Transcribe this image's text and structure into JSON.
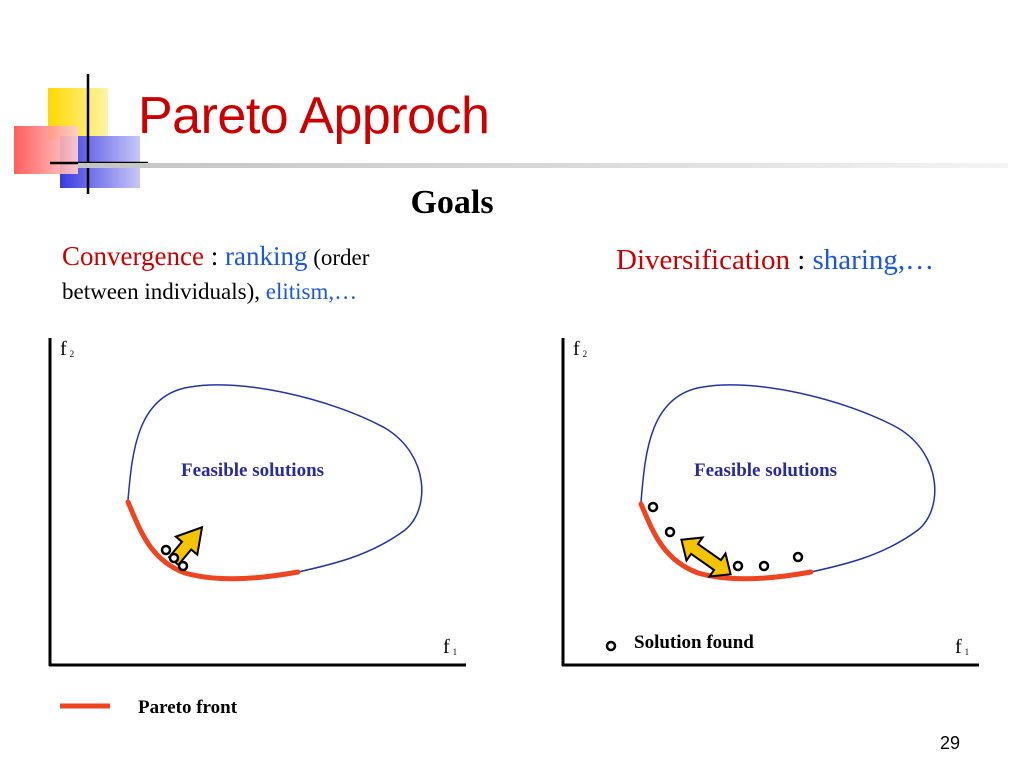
{
  "slide": {
    "title": "Pareto Approch",
    "subheading": "Goals",
    "page_number": "29"
  },
  "goals": {
    "convergence": {
      "label": "Convergence",
      "separator": " : ",
      "method": "ranking",
      "method_note": " (order",
      "line2_text": "between individuals), ",
      "line2_method": "elitism,…"
    },
    "diversification": {
      "label": "Diversification",
      "separator": " : ",
      "method": "sharing,…"
    }
  },
  "diagrams": {
    "left": {
      "region_label": "Feasible solutions",
      "y_axis_label": "f",
      "y_axis_sub": "2",
      "x_axis_label": "f",
      "x_axis_sub": "1"
    },
    "right": {
      "region_label": "Feasible solutions",
      "y_axis_label": "f",
      "y_axis_sub": "2",
      "x_axis_label": "f",
      "x_axis_sub": "1"
    }
  },
  "legend": {
    "pareto_front": "Pareto front",
    "solution_found": "Solution found"
  },
  "colors": {
    "title": "#cc0000",
    "keyword_red": "#cc0000",
    "keyword_blue": "#1a56e0",
    "feasible_outline": "#2233aa",
    "pareto_front": "#ee4422",
    "arrow_fill": "#f5c400"
  }
}
